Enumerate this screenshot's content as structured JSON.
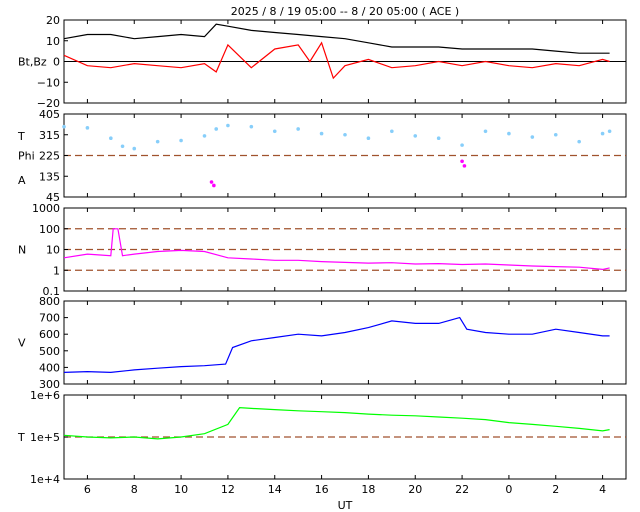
{
  "title": "2025 /  8 / 19   05:00 -- 8 / 20   05:00 ( ACE )",
  "x_axis": {
    "label": "UT",
    "ticks": [
      "6",
      "8",
      "10",
      "12",
      "14",
      "16",
      "18",
      "20",
      "22",
      "0",
      "2",
      "4"
    ],
    "tick_hours": [
      6,
      8,
      10,
      12,
      14,
      16,
      18,
      20,
      22,
      24,
      26,
      28
    ],
    "range_hours": [
      5,
      29
    ]
  },
  "colors": {
    "bt": "#000000",
    "bz": "#ff0000",
    "temperature_panel": "#87cefa",
    "phi": "#ff00ff",
    "density": "#ff00ff",
    "speed": "#0000ff",
    "temperature": "#00ff00",
    "ref_line": "#a0522d"
  },
  "chart_data": [
    {
      "type": "line",
      "panel": "Bt,Bz",
      "ylabel": "Bt,Bz",
      "ylim": [
        -20,
        20
      ],
      "y_ticks": [
        "20",
        "10",
        "0",
        "−10",
        "−20"
      ],
      "y_tick_values": [
        20,
        10,
        0,
        -10,
        -20
      ],
      "zero_line": 0,
      "series": [
        {
          "key": "bt",
          "x": [
            5,
            6,
            7,
            8,
            9,
            10,
            11,
            11.5,
            12,
            13,
            14,
            15,
            16,
            17,
            18,
            19,
            20,
            21,
            22,
            23,
            24,
            25,
            26,
            27,
            28,
            28.3
          ],
          "values": [
            11,
            13,
            13,
            11,
            12,
            13,
            12,
            18,
            17,
            15,
            14,
            13,
            12,
            11,
            9,
            7,
            7,
            7,
            6,
            6,
            6,
            6,
            5,
            4,
            4,
            4
          ]
        },
        {
          "key": "bz",
          "x": [
            5,
            6,
            7,
            8,
            9,
            10,
            11,
            11.5,
            12,
            13,
            14,
            15,
            15.5,
            16,
            16.5,
            17,
            18,
            19,
            20,
            21,
            22,
            23,
            24,
            25,
            26,
            27,
            28,
            28.3
          ],
          "values": [
            3,
            -2,
            -3,
            -1,
            -2,
            -3,
            -1,
            -5,
            8,
            -3,
            6,
            8,
            0,
            9,
            -8,
            -2,
            1,
            -3,
            -2,
            0,
            -2,
            0,
            -2,
            -3,
            -1,
            -2,
            1,
            0
          ]
        }
      ]
    },
    {
      "type": "scatter",
      "panel": "T / Phi / A",
      "ylabels": [
        "T",
        "Phi",
        "A"
      ],
      "ylim": [
        45,
        405
      ],
      "y_ticks": [
        "405",
        "315",
        "225",
        "135",
        "45"
      ],
      "y_tick_values": [
        405,
        315,
        225,
        135,
        45
      ],
      "ref_line": 225,
      "series": [
        {
          "key": "temperature_panel",
          "x": [
            5,
            6,
            7,
            7.5,
            8,
            9,
            10,
            11,
            11.5,
            12,
            13,
            14,
            15,
            16,
            17,
            18,
            19,
            20,
            21,
            22,
            23,
            24,
            25,
            26,
            27,
            28,
            28.3
          ],
          "values": [
            350,
            345,
            300,
            265,
            255,
            285,
            290,
            310,
            340,
            355,
            350,
            330,
            340,
            320,
            315,
            300,
            330,
            310,
            300,
            270,
            330,
            320,
            305,
            315,
            285,
            320,
            330
          ]
        },
        {
          "key": "phi",
          "x": [
            11.3,
            11.4,
            22.0,
            22.1
          ],
          "values": [
            110,
            95,
            200,
            180
          ]
        }
      ]
    },
    {
      "type": "line",
      "panel": "N",
      "ylabel": "N",
      "scale": "log",
      "ylim": [
        0.1,
        1000
      ],
      "y_ticks": [
        "1000",
        "100",
        "10",
        "1",
        "0.1"
      ],
      "y_tick_values": [
        1000,
        100,
        10,
        1,
        0.1
      ],
      "ref_lines": [
        100,
        10,
        1
      ],
      "series": [
        {
          "key": "density",
          "x": [
            5,
            6,
            7,
            7.1,
            7.3,
            7.5,
            8,
            9,
            10,
            11,
            12,
            13,
            14,
            15,
            16,
            17,
            18,
            19,
            20,
            21,
            22,
            23,
            24,
            25,
            26,
            27,
            28,
            28.3
          ],
          "values": [
            4,
            6,
            5,
            100,
            100,
            5,
            6,
            8,
            9,
            8,
            4,
            3.5,
            3,
            3,
            2.6,
            2.4,
            2.2,
            2.3,
            2.0,
            2.1,
            1.9,
            2.0,
            1.8,
            1.6,
            1.5,
            1.4,
            1.1,
            1.3
          ]
        }
      ]
    },
    {
      "type": "line",
      "panel": "V",
      "ylabel": "V",
      "ylim": [
        300,
        800
      ],
      "y_ticks": [
        "800",
        "700",
        "600",
        "500",
        "400",
        "300"
      ],
      "y_tick_values": [
        800,
        700,
        600,
        500,
        400,
        300
      ],
      "series": [
        {
          "key": "speed",
          "x": [
            5,
            6,
            7,
            8,
            9,
            10,
            11,
            11.9,
            12.2,
            13,
            14,
            15,
            16,
            17,
            18,
            19,
            20,
            21,
            21.9,
            22.2,
            23,
            24,
            25,
            26,
            27,
            28,
            28.3
          ],
          "values": [
            370,
            375,
            370,
            385,
            395,
            405,
            410,
            420,
            520,
            560,
            580,
            600,
            590,
            610,
            640,
            680,
            665,
            665,
            700,
            630,
            610,
            600,
            600,
            630,
            610,
            590,
            590
          ]
        }
      ]
    },
    {
      "type": "line",
      "panel": "T",
      "ylabel": "T",
      "scale": "log",
      "ylim": [
        10000,
        1000000
      ],
      "y_ticks": [
        "1e+6",
        "1e+5",
        "1e+4"
      ],
      "y_tick_values": [
        1000000,
        100000,
        10000
      ],
      "ref_line": 100000,
      "series": [
        {
          "key": "temperature",
          "x": [
            5,
            6,
            7,
            8,
            9,
            10,
            11,
            12,
            12.5,
            13,
            14,
            15,
            16,
            17,
            18,
            19,
            20,
            21,
            22,
            23,
            24,
            25,
            26,
            27,
            28,
            28.3
          ],
          "values": [
            110000,
            100000,
            95000,
            100000,
            90000,
            100000,
            120000,
            200000,
            500000,
            480000,
            450000,
            420000,
            400000,
            380000,
            350000,
            330000,
            320000,
            300000,
            280000,
            260000,
            220000,
            200000,
            180000,
            160000,
            140000,
            150000
          ]
        }
      ]
    }
  ]
}
